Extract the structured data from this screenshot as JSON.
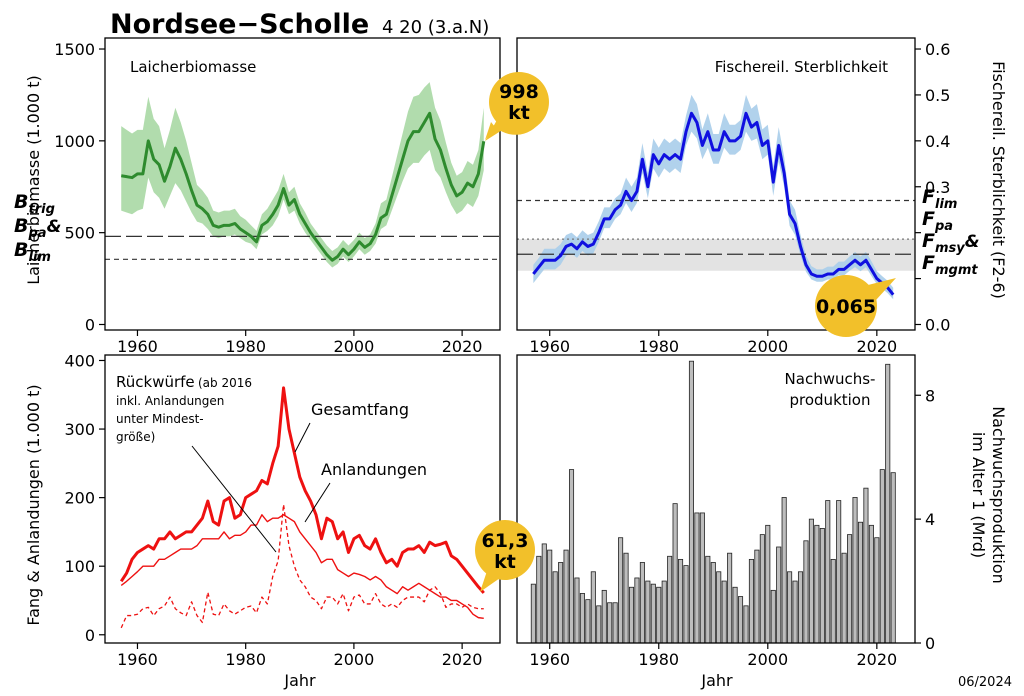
{
  "header": {
    "title": "Nordsee−Scholle",
    "subtitle": "4 20 (3.a.N)"
  },
  "date_stamp": "06/2024",
  "callouts": {
    "ssb_value": "998",
    "ssb_unit": "kt",
    "f_value": "0,065",
    "catch_value": "61,3",
    "catch_unit": "kt"
  },
  "colors": {
    "ssb": "#2e8b2e",
    "ssb_band": "#a8d8a4",
    "f": "#1010e0",
    "f_band": "#a9cdea",
    "catch": "#ee1111",
    "bars": "#bdbdbd",
    "callout": "#f2c02a"
  },
  "chart_data": [
    {
      "type": "line",
      "panel": "top-left",
      "title": "Laicherbiomasse",
      "ylabel": "Laicherbiomasse (1.000 t)",
      "xlabel": "",
      "xlim": [
        1954,
        2027
      ],
      "ylim": [
        -30,
        1560
      ],
      "xticks": [
        1960,
        1980,
        2000,
        2020
      ],
      "yticks": [
        0,
        500,
        1000,
        1500
      ],
      "ref_labels": [
        {
          "base": "B",
          "sub": "trig",
          "tail": ""
        },
        {
          "base": "B",
          "sub": "pa",
          "tail": "&"
        },
        {
          "base": "B",
          "sub": "lim",
          "tail": ""
        }
      ],
      "reference_lines": [
        {
          "value": 480,
          "style": "longdash"
        },
        {
          "value": 355,
          "style": "dashed"
        }
      ],
      "x": [
        1957,
        1958,
        1959,
        1960,
        1961,
        1962,
        1963,
        1964,
        1965,
        1966,
        1967,
        1968,
        1969,
        1970,
        1971,
        1972,
        1973,
        1974,
        1975,
        1976,
        1977,
        1978,
        1979,
        1980,
        1981,
        1982,
        1983,
        1984,
        1985,
        1986,
        1987,
        1988,
        1989,
        1990,
        1991,
        1992,
        1993,
        1994,
        1995,
        1996,
        1997,
        1998,
        1999,
        2000,
        2001,
        2002,
        2003,
        2004,
        2005,
        2006,
        2007,
        2008,
        2009,
        2010,
        2011,
        2012,
        2013,
        2014,
        2015,
        2016,
        2017,
        2018,
        2019,
        2020,
        2021,
        2022,
        2023,
        2024
      ],
      "series": [
        {
          "values": [
            810,
            805,
            800,
            820,
            820,
            1000,
            900,
            870,
            780,
            860,
            960,
            900,
            820,
            730,
            650,
            630,
            600,
            540,
            530,
            540,
            540,
            550,
            520,
            500,
            480,
            450,
            540,
            560,
            600,
            650,
            740,
            650,
            680,
            600,
            550,
            500,
            460,
            420,
            380,
            350,
            370,
            410,
            380,
            410,
            450,
            420,
            440,
            490,
            580,
            600,
            700,
            800,
            900,
            1000,
            1050,
            1050,
            1100,
            1150,
            1010,
            950,
            850,
            760,
            700,
            720,
            770,
            750,
            820,
            998
          ]
        }
      ],
      "band_lower": [
        620,
        610,
        600,
        620,
        630,
        800,
        720,
        690,
        630,
        700,
        770,
        730,
        670,
        610,
        560,
        550,
        520,
        480,
        470,
        480,
        480,
        490,
        470,
        450,
        440,
        410,
        490,
        510,
        540,
        590,
        680,
        600,
        620,
        550,
        500,
        460,
        420,
        380,
        340,
        310,
        330,
        370,
        340,
        370,
        410,
        380,
        400,
        440,
        520,
        540,
        620,
        700,
        780,
        850,
        880,
        880,
        920,
        950,
        840,
        800,
        720,
        650,
        600,
        620,
        660,
        640,
        700,
        840
      ],
      "band_upper": [
        1080,
        1060,
        1040,
        1060,
        1060,
        1240,
        1120,
        1080,
        960,
        1060,
        1180,
        1100,
        1000,
        880,
        760,
        730,
        690,
        620,
        610,
        620,
        620,
        630,
        590,
        570,
        540,
        510,
        600,
        630,
        680,
        730,
        820,
        720,
        750,
        660,
        610,
        550,
        510,
        470,
        430,
        400,
        420,
        460,
        430,
        460,
        500,
        470,
        490,
        550,
        660,
        680,
        800,
        920,
        1040,
        1160,
        1240,
        1250,
        1290,
        1320,
        1180,
        1110,
        990,
        880,
        810,
        830,
        890,
        870,
        950,
        1180
      ]
    },
    {
      "type": "line",
      "panel": "top-right",
      "title": "Fischereil. Sterblichkeit",
      "ylabel": "Fischereil. Sterblichkeit (F2-6)",
      "xlabel": "",
      "xlim": [
        1954,
        2027
      ],
      "ylim": [
        -0.012,
        0.624
      ],
      "xticks": [
        1960,
        1980,
        2000,
        2020
      ],
      "yticks": [
        0.0,
        0.1,
        0.2,
        0.3,
        0.4,
        0.5,
        0.6
      ],
      "ytick_labels": [
        "0.0",
        "",
        "",
        "0.3",
        "0.4",
        "0.5",
        "0.6"
      ],
      "ref_labels": [
        {
          "base": "F",
          "sub": "lim",
          "tail": ""
        },
        {
          "base": "F",
          "sub": "pa",
          "tail": ""
        },
        {
          "base": "F",
          "sub": "msy",
          "tail": "&"
        },
        {
          "base": "F",
          "sub": "mgmt",
          "tail": ""
        }
      ],
      "reference_lines": [
        {
          "value": 0.27,
          "style": "dashed"
        },
        {
          "value": 0.186,
          "style": "dotted"
        },
        {
          "value": 0.153,
          "style": "longdash"
        }
      ],
      "shaded_range": [
        0.117,
        0.186
      ],
      "x": [
        1957,
        1958,
        1959,
        1960,
        1961,
        1962,
        1963,
        1964,
        1965,
        1966,
        1967,
        1968,
        1969,
        1970,
        1971,
        1972,
        1973,
        1974,
        1975,
        1976,
        1977,
        1978,
        1979,
        1980,
        1981,
        1982,
        1983,
        1984,
        1985,
        1986,
        1987,
        1988,
        1989,
        1990,
        1991,
        1992,
        1993,
        1994,
        1995,
        1996,
        1997,
        1998,
        1999,
        2000,
        2001,
        2002,
        2003,
        2004,
        2005,
        2006,
        2007,
        2008,
        2009,
        2010,
        2011,
        2012,
        2013,
        2014,
        2015,
        2016,
        2017,
        2018,
        2019,
        2020,
        2021,
        2022,
        2023
      ],
      "series": [
        {
          "values": [
            0.11,
            0.125,
            0.14,
            0.14,
            0.14,
            0.15,
            0.17,
            0.175,
            0.165,
            0.18,
            0.17,
            0.175,
            0.2,
            0.23,
            0.23,
            0.25,
            0.26,
            0.29,
            0.27,
            0.29,
            0.36,
            0.3,
            0.37,
            0.35,
            0.37,
            0.36,
            0.37,
            0.36,
            0.42,
            0.46,
            0.44,
            0.39,
            0.42,
            0.38,
            0.38,
            0.42,
            0.4,
            0.4,
            0.41,
            0.46,
            0.43,
            0.44,
            0.39,
            0.4,
            0.31,
            0.39,
            0.33,
            0.24,
            0.22,
            0.17,
            0.13,
            0.11,
            0.105,
            0.105,
            0.11,
            0.11,
            0.12,
            0.12,
            0.13,
            0.14,
            0.13,
            0.14,
            0.12,
            0.1,
            0.09,
            0.08,
            0.065
          ]
        }
      ],
      "band_lower": [
        0.09,
        0.105,
        0.12,
        0.12,
        0.12,
        0.13,
        0.15,
        0.155,
        0.145,
        0.16,
        0.15,
        0.155,
        0.18,
        0.21,
        0.21,
        0.23,
        0.24,
        0.265,
        0.245,
        0.265,
        0.33,
        0.275,
        0.34,
        0.32,
        0.34,
        0.33,
        0.34,
        0.33,
        0.39,
        0.42,
        0.405,
        0.36,
        0.385,
        0.35,
        0.35,
        0.385,
        0.37,
        0.37,
        0.38,
        0.42,
        0.4,
        0.405,
        0.36,
        0.37,
        0.28,
        0.355,
        0.3,
        0.215,
        0.195,
        0.15,
        0.115,
        0.098,
        0.093,
        0.093,
        0.098,
        0.098,
        0.107,
        0.107,
        0.117,
        0.125,
        0.116,
        0.125,
        0.106,
        0.088,
        0.078,
        0.068,
        0.055
      ],
      "band_upper": [
        0.13,
        0.145,
        0.165,
        0.165,
        0.165,
        0.175,
        0.195,
        0.2,
        0.19,
        0.205,
        0.195,
        0.2,
        0.225,
        0.255,
        0.255,
        0.275,
        0.285,
        0.32,
        0.3,
        0.32,
        0.395,
        0.33,
        0.405,
        0.385,
        0.405,
        0.395,
        0.405,
        0.395,
        0.455,
        0.5,
        0.48,
        0.425,
        0.46,
        0.415,
        0.415,
        0.46,
        0.435,
        0.435,
        0.445,
        0.5,
        0.47,
        0.48,
        0.425,
        0.435,
        0.345,
        0.43,
        0.365,
        0.27,
        0.25,
        0.195,
        0.15,
        0.127,
        0.12,
        0.12,
        0.126,
        0.126,
        0.137,
        0.137,
        0.148,
        0.158,
        0.148,
        0.158,
        0.138,
        0.116,
        0.105,
        0.095,
        0.08
      ]
    },
    {
      "type": "line",
      "panel": "bottom-left",
      "title": "",
      "ylabel": "Fang & Anlandungen (1.000 t)",
      "xlabel": "Jahr",
      "xlim": [
        1954,
        2027
      ],
      "ylim": [
        -12,
        408
      ],
      "xticks": [
        1960,
        1980,
        2000,
        2020
      ],
      "yticks": [
        0,
        100,
        200,
        300,
        400
      ],
      "annotations": {
        "discards_line1": "Rückwürfe",
        "discards_line1b": "(ab 2016",
        "discards_line2": "inkl. Anlandungen",
        "discards_line3": "unter Mindest-",
        "discards_line4": "größe)",
        "total_label": "Gesamtfang",
        "landings_label": "Anlandungen"
      },
      "x": [
        1957,
        1958,
        1959,
        1960,
        1961,
        1962,
        1963,
        1964,
        1965,
        1966,
        1967,
        1968,
        1969,
        1970,
        1971,
        1972,
        1973,
        1974,
        1975,
        1976,
        1977,
        1978,
        1979,
        1980,
        1981,
        1982,
        1983,
        1984,
        1985,
        1986,
        1987,
        1988,
        1989,
        1990,
        1991,
        1992,
        1993,
        1994,
        1995,
        1996,
        1997,
        1998,
        1999,
        2000,
        2001,
        2002,
        2003,
        2004,
        2005,
        2006,
        2007,
        2008,
        2009,
        2010,
        2011,
        2012,
        2013,
        2014,
        2015,
        2016,
        2017,
        2018,
        2019,
        2020,
        2021,
        2022,
        2023,
        2024
      ],
      "series": [
        {
          "name": "Gesamtfang",
          "style": "thick",
          "values": [
            78,
            90,
            110,
            120,
            125,
            130,
            125,
            140,
            140,
            150,
            140,
            145,
            150,
            150,
            160,
            170,
            195,
            165,
            160,
            195,
            200,
            170,
            175,
            200,
            205,
            210,
            225,
            220,
            250,
            275,
            360,
            300,
            265,
            230,
            210,
            195,
            175,
            140,
            170,
            165,
            140,
            150,
            120,
            140,
            145,
            130,
            125,
            140,
            120,
            105,
            110,
            100,
            120,
            125,
            125,
            130,
            120,
            135,
            130,
            132,
            135,
            115,
            110,
            100,
            90,
            80,
            70,
            61
          ]
        },
        {
          "name": "Anlandungen",
          "style": "thin",
          "values": [
            72,
            78,
            85,
            92,
            100,
            100,
            100,
            110,
            110,
            115,
            120,
            125,
            125,
            125,
            130,
            140,
            140,
            140,
            140,
            150,
            140,
            145,
            145,
            150,
            160,
            160,
            175,
            165,
            170,
            170,
            175,
            170,
            165,
            150,
            140,
            130,
            120,
            105,
            110,
            110,
            95,
            90,
            85,
            90,
            88,
            85,
            80,
            85,
            80,
            70,
            65,
            60,
            70,
            65,
            70,
            75,
            70,
            65,
            60,
            55,
            55,
            50,
            50,
            45,
            40,
            30,
            25,
            24
          ]
        },
        {
          "name": "Rückwürfe",
          "style": "dashed",
          "values": [
            10,
            28,
            28,
            30,
            38,
            40,
            28,
            38,
            42,
            55,
            38,
            32,
            28,
            48,
            28,
            18,
            62,
            30,
            28,
            45,
            35,
            30,
            35,
            40,
            42,
            32,
            55,
            45,
            85,
            108,
            190,
            130,
            100,
            80,
            70,
            55,
            50,
            38,
            55,
            55,
            45,
            60,
            35,
            55,
            58,
            45,
            45,
            60,
            45,
            40,
            45,
            40,
            50,
            55,
            55,
            55,
            48,
            65,
            70,
            60,
            40,
            45,
            45,
            40,
            45,
            40,
            38,
            38
          ]
        }
      ]
    },
    {
      "type": "bar",
      "panel": "bottom-right",
      "title": "Nachwuchs-\nproduktion",
      "title_lines": [
        "Nachwuchs-",
        "produktion"
      ],
      "ylabel": "Nachwuchsproduktion im Alter 1 (Mrd)",
      "ylabel_lines": [
        "Nachwuchsproduktion",
        "im Alter 1 (Mrd)"
      ],
      "xlabel": "Jahr",
      "xlim": [
        1954,
        2027
      ],
      "ylim": [
        0,
        9.3
      ],
      "xticks": [
        1960,
        1980,
        2000,
        2020
      ],
      "yticks": [
        0,
        4,
        8
      ],
      "x": [
        1957,
        1958,
        1959,
        1960,
        1961,
        1962,
        1963,
        1964,
        1965,
        1966,
        1967,
        1968,
        1969,
        1970,
        1971,
        1972,
        1973,
        1974,
        1975,
        1976,
        1977,
        1978,
        1979,
        1980,
        1981,
        1982,
        1983,
        1984,
        1985,
        1986,
        1987,
        1988,
        1989,
        1990,
        1991,
        1992,
        1993,
        1994,
        1995,
        1996,
        1997,
        1998,
        1999,
        2000,
        2001,
        2002,
        2003,
        2004,
        2005,
        2006,
        2007,
        2008,
        2009,
        2010,
        2011,
        2012,
        2013,
        2014,
        2015,
        2016,
        2017,
        2018,
        2019,
        2020,
        2021,
        2022,
        2023
      ],
      "values": [
        1.9,
        2.8,
        3.2,
        3.0,
        2.3,
        2.6,
        3.0,
        5.6,
        2.1,
        1.6,
        1.4,
        2.3,
        1.2,
        1.7,
        1.3,
        1.3,
        3.4,
        2.9,
        1.8,
        2.1,
        2.6,
        2.0,
        1.9,
        1.8,
        2.0,
        2.8,
        4.5,
        2.7,
        2.5,
        9.1,
        4.2,
        4.2,
        2.8,
        2.6,
        2.3,
        2.0,
        2.9,
        1.8,
        1.5,
        1.2,
        2.7,
        3.0,
        3.5,
        3.8,
        1.7,
        3.1,
        4.7,
        2.3,
        2.0,
        2.3,
        3.3,
        4.0,
        3.8,
        3.7,
        4.6,
        2.7,
        4.6,
        2.9,
        3.5,
        4.7,
        3.9,
        5.0,
        3.8,
        3.4,
        5.6,
        9.0,
        5.5
      ]
    }
  ]
}
